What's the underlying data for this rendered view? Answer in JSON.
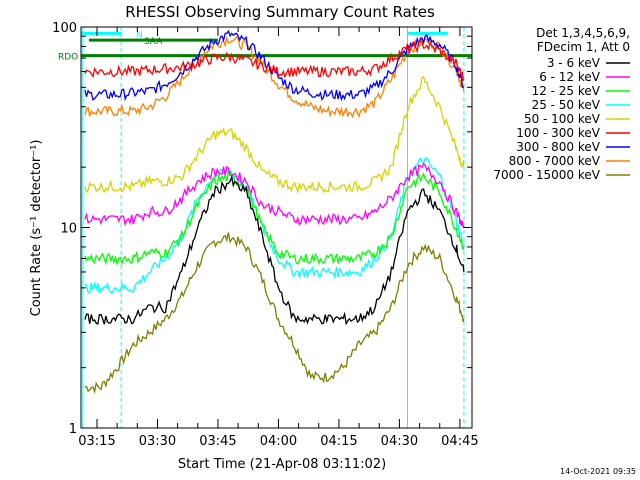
{
  "chart_data": {
    "type": "line",
    "title": "RHESSI Observing Summary Count Rates",
    "xlabel": "Start Time (21-Apr-08 03:11:02)",
    "ylabel": "Count Rate (s⁻¹ detector⁻¹)",
    "y_scale": "log",
    "ylim": [
      1,
      100
    ],
    "xlim": [
      "03:11:02",
      "04:48"
    ],
    "x_ticks": [
      "03:15",
      "03:30",
      "03:45",
      "04:00",
      "04:15",
      "04:30",
      "04:45"
    ],
    "y_ticks": [
      "1",
      "10",
      "100"
    ],
    "info_lines": [
      "Det 1,3,4,5,6,9,",
      "FDecim 1, Att 0"
    ],
    "timestamp": "14-Oct-2021 09:35",
    "x": [
      "03:12",
      "03:16",
      "03:20",
      "03:24",
      "03:28",
      "03:32",
      "03:36",
      "03:40",
      "03:44",
      "03:48",
      "03:52",
      "03:56",
      "04:00",
      "04:04",
      "04:08",
      "04:12",
      "04:16",
      "04:20",
      "04:24",
      "04:28",
      "04:32",
      "04:36",
      "04:40",
      "04:44",
      "04:46"
    ],
    "series": [
      {
        "name": "3 - 6 keV",
        "color": "#000000",
        "values": [
          3.5,
          3.5,
          3.5,
          3.5,
          4,
          4,
          6,
          10,
          15,
          17,
          15,
          9,
          5,
          3.5,
          3.5,
          3.5,
          3.5,
          3.5,
          4,
          6,
          12,
          15,
          12,
          8,
          6
        ]
      },
      {
        "name": "6 - 12 keV",
        "color": "#ff00ff",
        "values": [
          11,
          11,
          11,
          11,
          12,
          12,
          14,
          17,
          19,
          19,
          17,
          13,
          12,
          11,
          11,
          11,
          11,
          11,
          12,
          14,
          18,
          20,
          17,
          12,
          10
        ]
      },
      {
        "name": "12 - 25 keV",
        "color": "#00ff00",
        "values": [
          7,
          7,
          7,
          7,
          7.5,
          7.5,
          9,
          13,
          17,
          18,
          16,
          10,
          7.5,
          7,
          7,
          7,
          7,
          7,
          7.5,
          9,
          16,
          18,
          15,
          10,
          8
        ]
      },
      {
        "name": "25 - 50 keV",
        "color": "#00ffff",
        "values": [
          5,
          5,
          5,
          5,
          6,
          7,
          9,
          14,
          18,
          19,
          16,
          10,
          7,
          6,
          6,
          6,
          6,
          6,
          7,
          9,
          18,
          22,
          18,
          11,
          8
        ]
      },
      {
        "name": "50 - 100 keV",
        "color": "#d4d400",
        "values": [
          16,
          16,
          16,
          16,
          17,
          17,
          18,
          23,
          29,
          30,
          25,
          19,
          17,
          16,
          16,
          16,
          16,
          16,
          17,
          20,
          40,
          55,
          40,
          25,
          20
        ]
      },
      {
        "name": "100 - 300 keV",
        "color": "#ff0000",
        "values": [
          60,
          60,
          60,
          60,
          61,
          62,
          63,
          66,
          70,
          71,
          68,
          64,
          60,
          60,
          60,
          60,
          60,
          60,
          62,
          70,
          78,
          82,
          76,
          66,
          55
        ]
      },
      {
        "name": "300 - 800 keV",
        "color": "#0000ff",
        "values": [
          46,
          46,
          46,
          47,
          48,
          52,
          60,
          72,
          85,
          92,
          84,
          70,
          56,
          49,
          47,
          46,
          46,
          46,
          50,
          60,
          78,
          88,
          82,
          65,
          50
        ]
      },
      {
        "name": "800 - 7000 keV",
        "color": "#ff8000",
        "values": [
          38,
          38,
          38,
          38,
          40,
          45,
          55,
          70,
          82,
          88,
          80,
          66,
          52,
          44,
          40,
          38,
          38,
          38,
          42,
          55,
          76,
          86,
          80,
          62,
          48
        ]
      },
      {
        "name": "7000 - 15000 keV",
        "color": "#808000",
        "values": [
          1.6,
          1.6,
          2,
          2.6,
          3,
          3.5,
          4.5,
          6.5,
          8.5,
          9,
          8,
          5.5,
          3.5,
          2.6,
          1.8,
          1.8,
          2,
          2.6,
          3,
          4,
          6.5,
          8,
          7,
          4.5,
          3.5
        ]
      }
    ],
    "flag_lines": [
      {
        "name": "RDO",
        "color": "#008000",
        "segments": [
          [
            "03:11:02",
            "04:48"
          ]
        ]
      },
      {
        "name": "N",
        "color": "#00ffff",
        "segments": [
          [
            "03:11:02",
            "03:21"
          ],
          [
            "04:32",
            "04:42"
          ]
        ]
      },
      {
        "name": "SAA",
        "color": "#008000",
        "segments": [
          [
            "03:13",
            "03:45"
          ]
        ]
      }
    ],
    "night_boundaries": [
      "03:11:30",
      "03:21",
      "04:32",
      "04:46"
    ],
    "grid": false,
    "legend_position": "right"
  }
}
